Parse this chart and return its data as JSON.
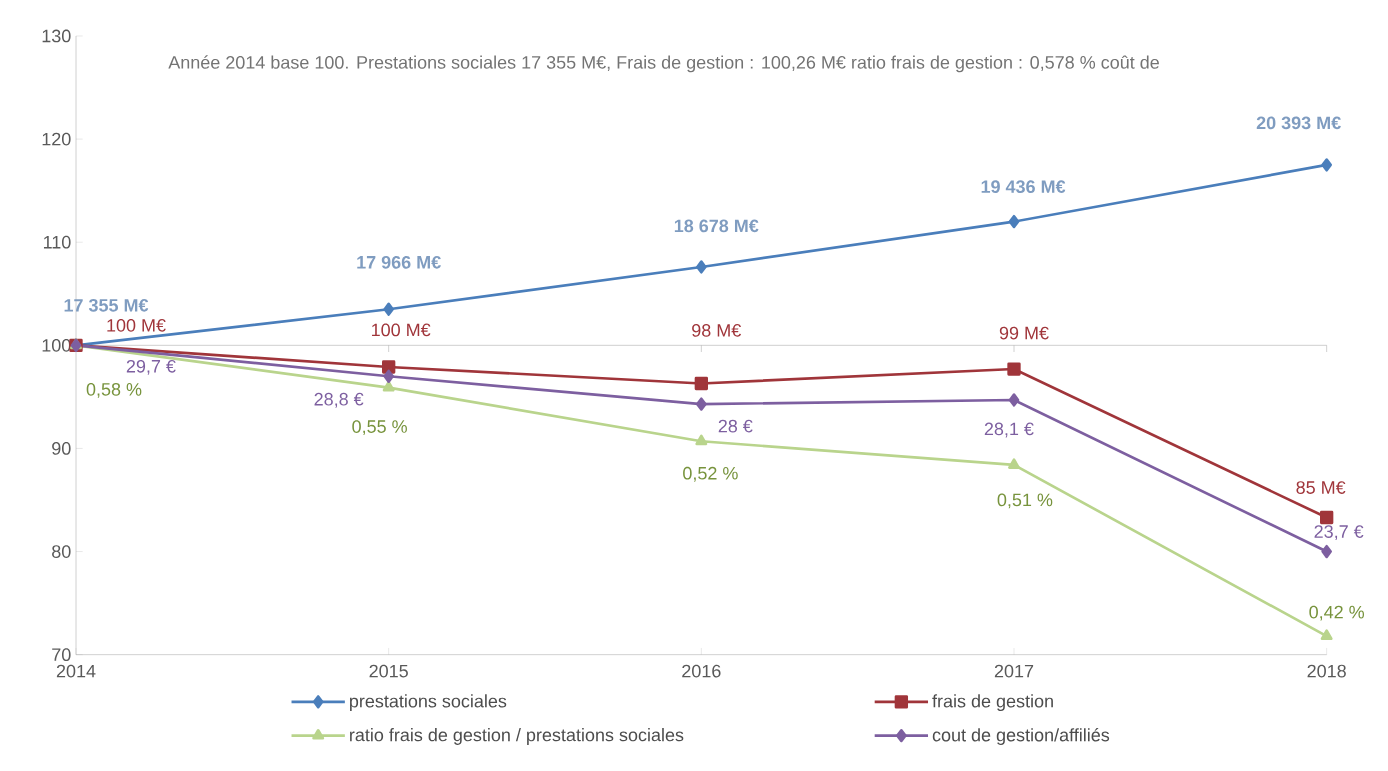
{
  "chart_data": {
    "type": "line",
    "categories": [
      "2014",
      "2015",
      "2016",
      "2017",
      "2018"
    ],
    "annotations": [
      "Année 2014 base 100. Prestations sociales 17 355 M€, Frais de gestion : 100,26 M€ ratio frais de gestion : 0,578 % coût de",
      {
        "text": "17 355 M€",
        "x": "2014",
        "y": 100
      },
      {
        "text": "17 966 M€",
        "x": "2015",
        "y": 103.5
      },
      {
        "text": "18 678 M€",
        "x": "2016",
        "y": 107.6
      },
      {
        "text": "19 436 M€",
        "x": "2017",
        "y": 112.0
      },
      {
        "text": "20 393 M€",
        "x": "2018",
        "y": 117.5
      },
      {
        "text": "100 M€",
        "x": "2014",
        "y": 100
      },
      {
        "text": "100 M€",
        "x": "2015",
        "y": 97.9
      },
      {
        "text": "98 M€",
        "x": "2016",
        "y": 96.3
      },
      {
        "text": "99 M€",
        "x": "2017",
        "y": 97.7
      },
      {
        "text": "85 M€",
        "x": "2018",
        "y": 83.3
      },
      {
        "text": "0,58 %",
        "x": "2014",
        "y": 100
      },
      {
        "text": "0,55 %",
        "x": "2015",
        "y": 95.9
      },
      {
        "text": "0,52 %",
        "x": "2016",
        "y": 90.7
      },
      {
        "text": "0,51 %",
        "x": "2017",
        "y": 88.4
      },
      {
        "text": "0,42 %",
        "x": "2018",
        "y": 71.8
      },
      {
        "text": "29,7 €",
        "x": "2014",
        "y": 100
      },
      {
        "text": "28,8 €",
        "x": "2015",
        "y": 97.0
      },
      {
        "text": "28 €",
        "x": "2016",
        "y": 94.3
      },
      {
        "text": "28,1 €",
        "x": "2017",
        "y": 94.7
      },
      {
        "text": "23,7 €",
        "x": "2018",
        "y": 80.0
      }
    ],
    "ylim": [
      70,
      130
    ],
    "yticks": [
      70,
      80,
      90,
      100,
      110,
      120,
      130
    ],
    "ref_lines": [
      {
        "axis": "y",
        "value": 100
      }
    ],
    "legend": "bottom",
    "grid": false,
    "series": [
      {
        "name": "prestations sociales",
        "color": "#4a7ebb",
        "marker": "diamond",
        "values": [
          100,
          103.5,
          107.6,
          112.0,
          117.5
        ]
      },
      {
        "name": "frais de gestion",
        "color": "#a0353a",
        "marker": "square",
        "values": [
          100,
          97.9,
          96.3,
          97.7,
          83.3
        ]
      },
      {
        "name": "ratio frais de gestion / prestations sociales",
        "color": "#b9d48c",
        "marker": "triangle",
        "values": [
          100,
          95.9,
          90.7,
          88.4,
          71.8
        ]
      },
      {
        "name": "cout de gestion/affiliés",
        "color": "#7d5fa0",
        "marker": "diamond",
        "values": [
          100,
          97.0,
          94.3,
          94.7,
          80.0
        ]
      }
    ]
  }
}
